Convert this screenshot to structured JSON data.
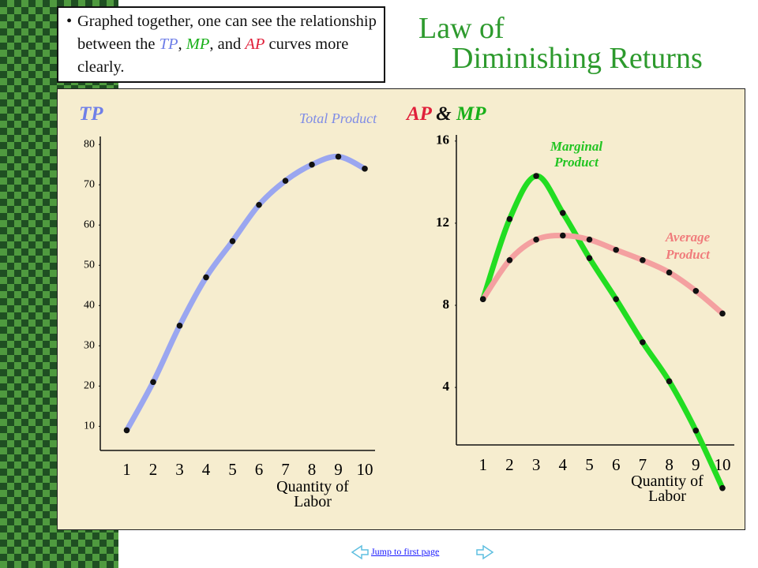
{
  "slide_title": [
    "Law of",
    "Diminishing Returns"
  ],
  "note": [
    "Graphed together, one can see the relationship between the ",
    "TP",
    ", ",
    "MP",
    ", and ",
    "AP",
    " curves more clearly."
  ],
  "link": "Jump to first page",
  "chart_data": [
    {
      "type": "line",
      "title": "TP",
      "xlabel": "Quantity of Labor",
      "x": [
        1,
        2,
        3,
        4,
        5,
        6,
        7,
        8,
        9,
        10
      ],
      "xlim": [
        0,
        10
      ],
      "xticks": [
        1,
        2,
        3,
        4,
        5,
        6,
        7,
        8,
        9,
        10
      ],
      "ylim": [
        4,
        82
      ],
      "yticks": [
        10,
        20,
        30,
        40,
        50,
        60,
        70,
        80
      ],
      "series": [
        {
          "name": "Total Product",
          "color": "#9aa6f0",
          "values": [
            9,
            21,
            35,
            47,
            56,
            65,
            71,
            75,
            77,
            74
          ]
        }
      ]
    },
    {
      "type": "line",
      "title": "AP & MP",
      "xlabel": "Quantity of Labor",
      "x": [
        1,
        2,
        3,
        4,
        5,
        6,
        7,
        8,
        9,
        10
      ],
      "xlim": [
        0,
        10
      ],
      "xticks": [
        1,
        2,
        3,
        4,
        5,
        6,
        7,
        8,
        9,
        10
      ],
      "ylim": [
        1.2,
        16.3
      ],
      "yticks": [
        4,
        8,
        12,
        16
      ],
      "series": [
        {
          "name": "Marginal Product",
          "color": "#22dd22",
          "values": [
            8.3,
            12.2,
            14.3,
            12.5,
            10.3,
            8.3,
            6.2,
            4.3,
            1.9,
            -0.9
          ]
        },
        {
          "name": "Average Product",
          "color": "#f4a0a0",
          "values": [
            8.3,
            10.2,
            11.2,
            11.4,
            11.2,
            10.7,
            10.2,
            9.6,
            8.7,
            7.6
          ]
        }
      ]
    }
  ]
}
